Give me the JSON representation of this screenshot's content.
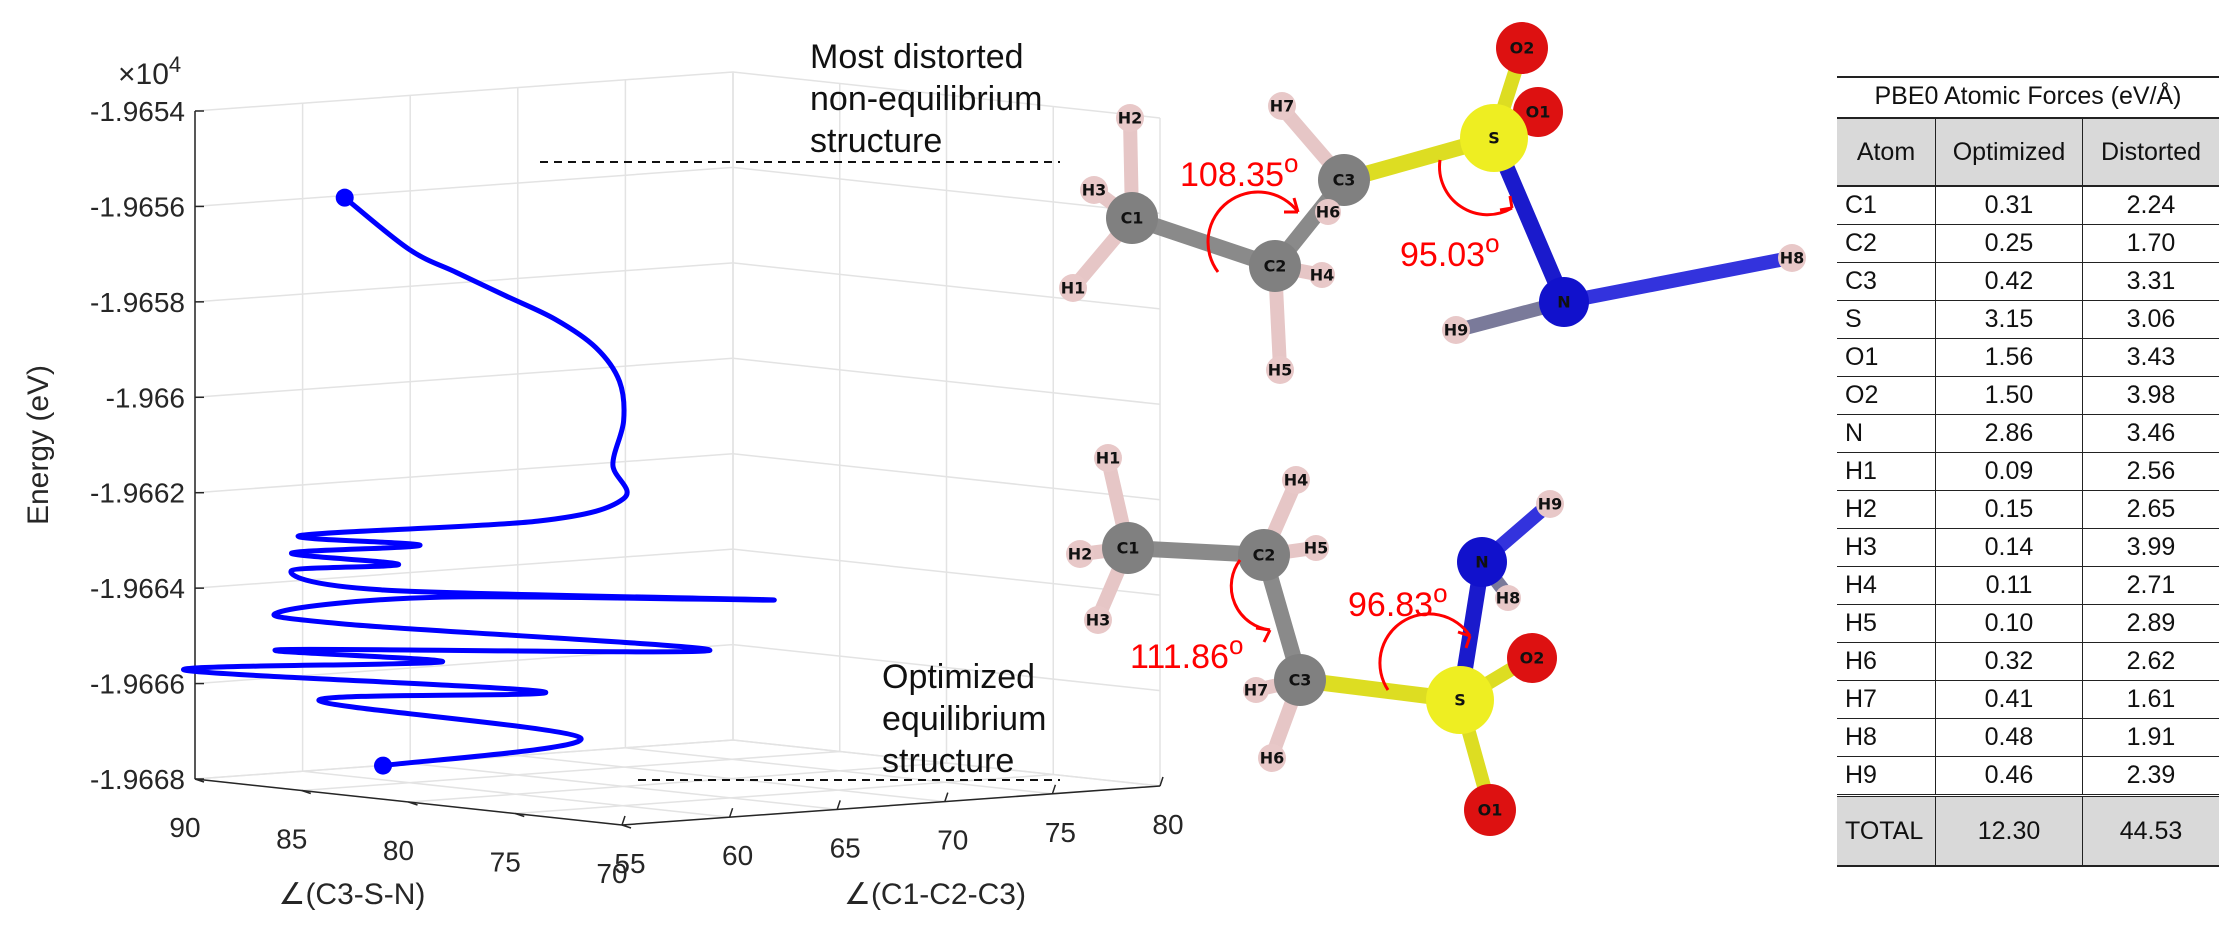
{
  "chart_data": {
    "type": "line3d",
    "multiplier_label": "×10",
    "multiplier_exp": "4",
    "zlabel": "Energy (eV)",
    "xlabel": "∠(C1-C2-C3)",
    "ylabel": "∠(C3-S-N)",
    "zticks": [
      "-1.9654",
      "-1.9656",
      "-1.9658",
      "-1.966",
      "-1.9662",
      "-1.9664",
      "-1.9666",
      "-1.9668"
    ],
    "ztick_values": [
      -1.9654,
      -1.9656,
      -1.9658,
      -1.966,
      -1.9662,
      -1.9664,
      -1.9666,
      -1.9668
    ],
    "zlim": [
      -1.9668,
      -1.9654
    ],
    "xticks": [
      "55",
      "60",
      "65",
      "70",
      "75",
      "80"
    ],
    "xtick_values": [
      55,
      60,
      65,
      70,
      75,
      80
    ],
    "xlim": [
      55,
      80
    ],
    "yticks": [
      "70",
      "75",
      "80",
      "85",
      "90"
    ],
    "ytick_values": [
      70,
      75,
      80,
      85,
      90
    ],
    "ylim": [
      70,
      90
    ],
    "grid": true,
    "series": [
      {
        "color": "#0000ff",
        "points": [
          {
            "x": 55.8,
            "y": 82.0,
            "z": -1.966736
          },
          {
            "x": 63.0,
            "y": 80.0,
            "z": -1.966692
          },
          {
            "x": 55.8,
            "y": 85.0,
            "z": -1.966614
          },
          {
            "x": 63.3,
            "y": 82.0,
            "z": -1.966606
          },
          {
            "x": 55.0,
            "y": 90.5,
            "z": -1.966574
          },
          {
            "x": 62.5,
            "y": 86.0,
            "z": -1.96656
          },
          {
            "x": 58.5,
            "y": 89.5,
            "z": -1.966538
          },
          {
            "x": 68.0,
            "y": 79.0,
            "z": -1.96652
          },
          {
            "x": 59.0,
            "y": 87.0,
            "z": -1.966474
          },
          {
            "x": 57.5,
            "y": 88.5,
            "z": -1.96645
          },
          {
            "x": 62.0,
            "y": 85.5,
            "z": -1.96642
          },
          {
            "x": 70.0,
            "y": 78.0,
            "z": -1.966416
          },
          {
            "x": 57.3,
            "y": 83.5,
            "z": -1.96638
          },
          {
            "x": 56.0,
            "y": 86.5,
            "z": -1.96635
          },
          {
            "x": 60.0,
            "y": 85.5,
            "z": -1.966345
          },
          {
            "x": 57.5,
            "y": 88.0,
            "z": -1.966325
          },
          {
            "x": 60.0,
            "y": 84.5,
            "z": -1.9663
          },
          {
            "x": 57.2,
            "y": 87.3,
            "z": -1.966284
          },
          {
            "x": 61.5,
            "y": 80.5,
            "z": -1.966235
          },
          {
            "x": 63.5,
            "y": 78.5,
            "z": -1.966185
          },
          {
            "x": 64.0,
            "y": 79.5,
            "z": -1.96612
          },
          {
            "x": 64.5,
            "y": 79.5,
            "z": -1.96603
          },
          {
            "x": 64.8,
            "y": 80.0,
            "z": -1.96595
          },
          {
            "x": 64.2,
            "y": 80.5,
            "z": -1.96588
          },
          {
            "x": 63.0,
            "y": 81.2,
            "z": -1.96582
          },
          {
            "x": 61.5,
            "y": 82.0,
            "z": -1.96577
          },
          {
            "x": 60.0,
            "y": 82.8,
            "z": -1.96572
          },
          {
            "x": 58.5,
            "y": 83.5,
            "z": -1.96567
          },
          {
            "x": 56.5,
            "y": 84.5,
            "z": -1.96556
          }
        ]
      }
    ],
    "start_point": {
      "x": 55.8,
      "y": 82.0,
      "z": -1.966736
    },
    "end_point": {
      "x": 56.5,
      "y": 84.5,
      "z": -1.96556
    }
  },
  "annotations": {
    "distorted": [
      "Most distorted",
      "non-equilibrium",
      "structure"
    ],
    "optimized": [
      "Optimized",
      "equilibrium",
      "structure"
    ]
  },
  "molecules": {
    "distorted": {
      "angle1_value": "108.35",
      "angle2_value": "95.03",
      "atoms": [
        "H2",
        "H7",
        "O2",
        "H3",
        "C1",
        "C3",
        "O1",
        "S",
        "H6",
        "C2",
        "H4",
        "H1",
        "N",
        "H8",
        "H9",
        "H5"
      ]
    },
    "optimized": {
      "angle1_value": "111.86",
      "angle2_value": "96.83",
      "atoms": [
        "H1",
        "H4",
        "H9",
        "H2",
        "C1",
        "C2",
        "H5",
        "N",
        "H8",
        "H3",
        "O2",
        "H7",
        "C3",
        "S",
        "H6",
        "O1"
      ]
    },
    "degree_symbol": "o",
    "colors": {
      "carbon": "#808080",
      "hydrogen": "#e8c8c8",
      "sulfur": "#eeee22",
      "oxygen": "#dd1111",
      "nitrogen": "#1111cc",
      "angle": "#ff0000"
    }
  },
  "table": {
    "title": "PBE0 Atomic Forces (eV/Å)",
    "headers": [
      "Atom",
      "Optimized",
      "Distorted"
    ],
    "rows": [
      [
        "C1",
        "0.31",
        "2.24"
      ],
      [
        "C2",
        "0.25",
        "1.70"
      ],
      [
        "C3",
        "0.42",
        "3.31"
      ],
      [
        "S",
        "3.15",
        "3.06"
      ],
      [
        "O1",
        "1.56",
        "3.43"
      ],
      [
        "O2",
        "1.50",
        "3.98"
      ],
      [
        "N",
        "2.86",
        "3.46"
      ],
      [
        "H1",
        "0.09",
        "2.56"
      ],
      [
        "H2",
        "0.15",
        "2.65"
      ],
      [
        "H3",
        "0.14",
        "3.99"
      ],
      [
        "H4",
        "0.11",
        "2.71"
      ],
      [
        "H5",
        "0.10",
        "2.89"
      ],
      [
        "H6",
        "0.32",
        "2.62"
      ],
      [
        "H7",
        "0.41",
        "1.61"
      ],
      [
        "H8",
        "0.48",
        "1.91"
      ],
      [
        "H9",
        "0.46",
        "2.39"
      ]
    ],
    "total": [
      "TOTAL",
      "12.30",
      "44.53"
    ]
  }
}
